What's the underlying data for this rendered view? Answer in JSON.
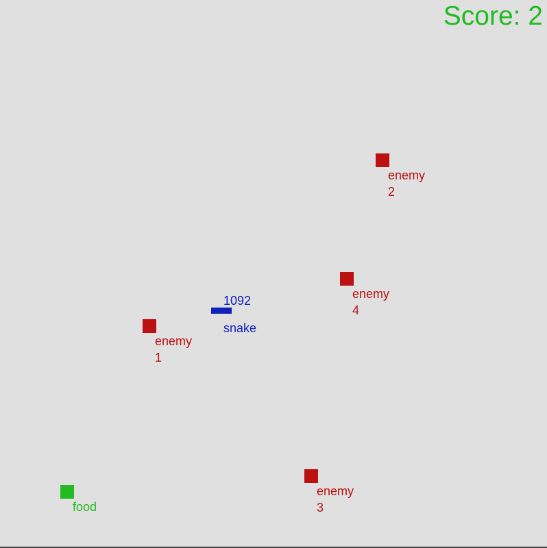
{
  "score": {
    "text": "Score: 2",
    "color": "#22bb22"
  },
  "colors": {
    "background": "#e0e0e0",
    "enemy": "#bb1111",
    "snake": "#1122bb",
    "food": "#22bb22"
  },
  "snake": {
    "label": "snake",
    "counter": "1092"
  },
  "food": {
    "label": "food"
  },
  "enemies": [
    {
      "label_word": "enemy",
      "label_number": "1"
    },
    {
      "label_word": "enemy",
      "label_number": "2"
    },
    {
      "label_word": "enemy",
      "label_number": "3"
    },
    {
      "label_word": "enemy",
      "label_number": "4"
    }
  ]
}
